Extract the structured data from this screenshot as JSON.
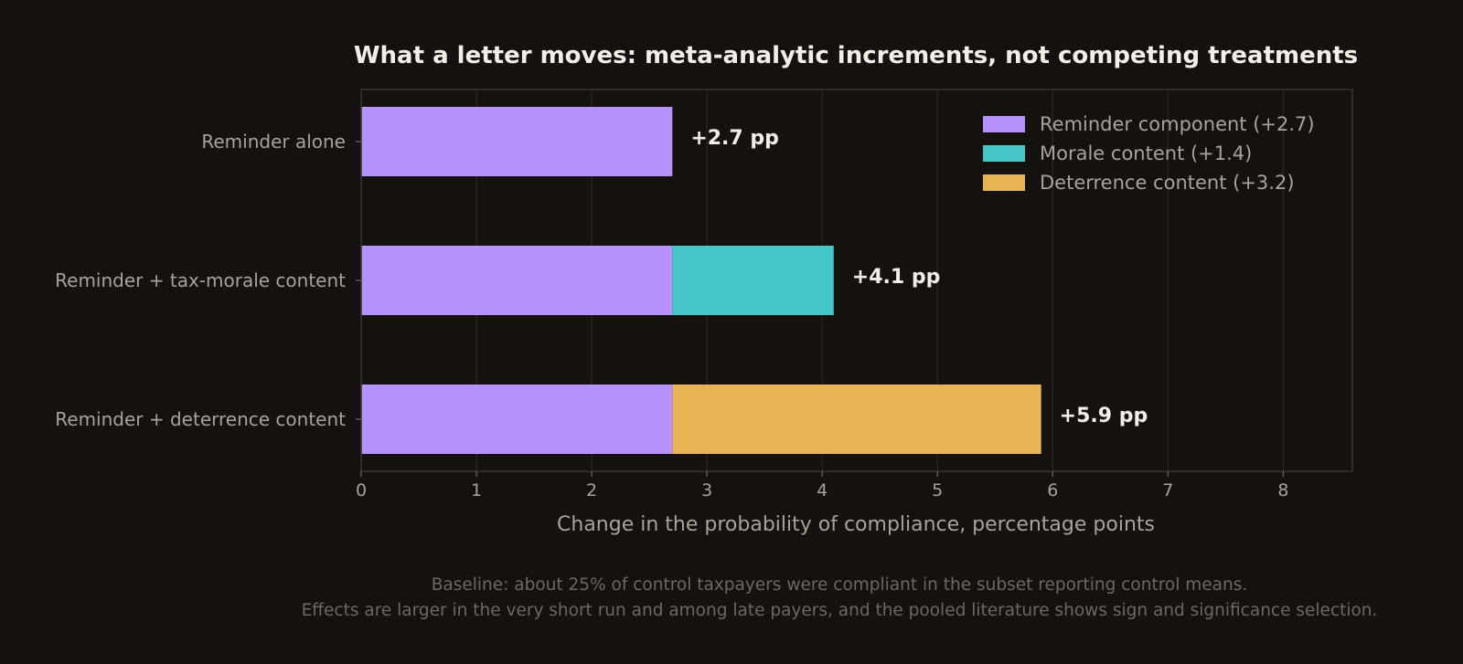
{
  "chart_data": {
    "type": "bar",
    "orientation": "horizontal",
    "stacked": true,
    "title": "What a letter moves: meta-analytic increments, not competing treatments",
    "xlabel": "Change in the probability of compliance, percentage points",
    "ylabel": "",
    "xlim": [
      0,
      8.6
    ],
    "xticks": [
      0,
      1,
      2,
      3,
      4,
      5,
      6,
      7,
      8
    ],
    "grid": true,
    "legend_position": "top-right",
    "categories": [
      "Reminder alone",
      "Reminder + tax-morale content",
      "Reminder + deterrence content"
    ],
    "series": [
      {
        "name": "Reminder component (+2.7)",
        "color": "#b692fc",
        "values": [
          2.7,
          2.7,
          2.7
        ]
      },
      {
        "name": "Morale content (+1.4)",
        "color": "#46c6c8",
        "values": [
          0,
          1.4,
          0
        ]
      },
      {
        "name": "Deterrence content (+3.2)",
        "color": "#e8b454",
        "values": [
          0,
          0,
          3.2
        ]
      }
    ],
    "totals": [
      2.7,
      4.1,
      5.9
    ],
    "data_labels": [
      "+2.7 pp",
      "+4.1 pp",
      "+5.9 pp"
    ],
    "notes": [
      "Baseline: about 25% of control taxpayers were compliant in the subset reporting control means.",
      "Effects are larger in the very short run and among late payers, and the pooled literature shows sign and significance selection."
    ]
  }
}
